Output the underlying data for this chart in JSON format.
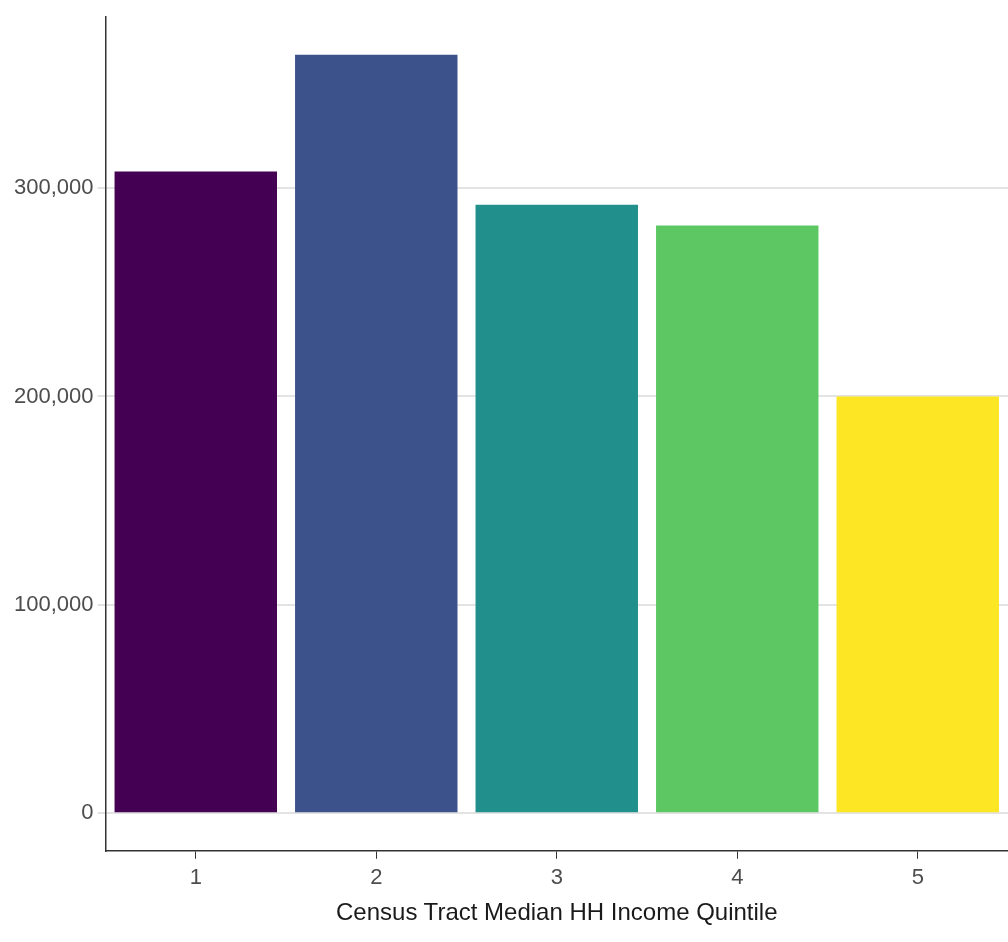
{
  "chart_data": {
    "type": "bar",
    "xlabel": "Census Tract Median HH Income Quintile",
    "categories": [
      "1",
      "2",
      "3",
      "4",
      "5"
    ],
    "values": [
      308000,
      364000,
      292000,
      282000,
      200000
    ],
    "colors": [
      "#440154",
      "#3b528b",
      "#21908c",
      "#5dc863",
      "#fde725"
    ],
    "ylim": [
      -18000,
      382000
    ],
    "yticks": [
      {
        "value": 0,
        "label": "0"
      },
      {
        "value": 100000,
        "label": "100,000"
      },
      {
        "value": 200000,
        "label": "200,000"
      },
      {
        "value": 300000,
        "label": "300,000"
      }
    ],
    "grid": "y",
    "legend": false
  }
}
